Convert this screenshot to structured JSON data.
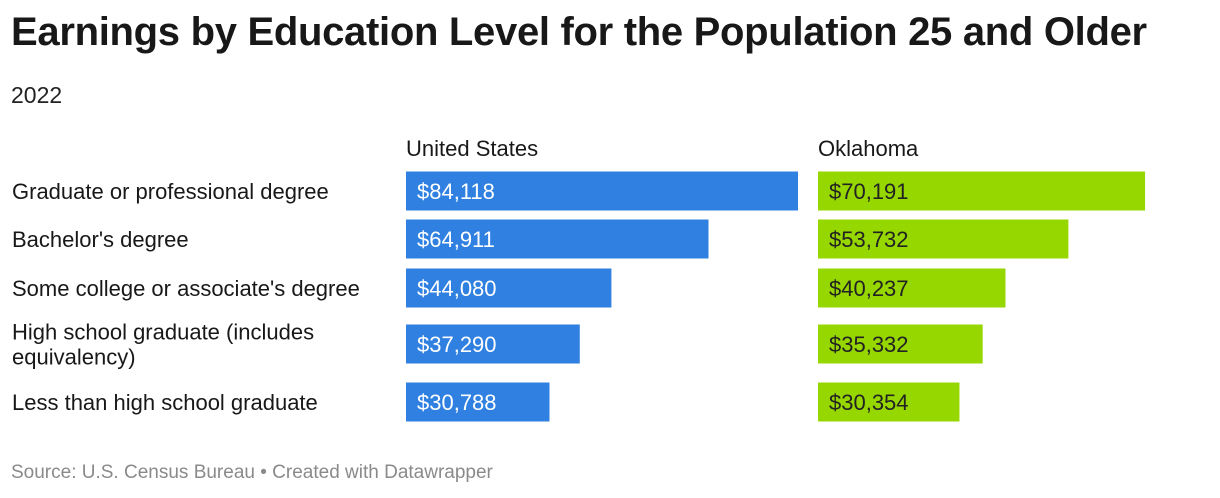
{
  "title": "Earnings by Education Level for the Population 25 and Older",
  "subtitle": "2022",
  "source": "Source: U.S. Census Bureau • Created with Datawrapper",
  "colors": {
    "us": "#2f80e0",
    "ok": "#97d700",
    "us_label": "#ffffff",
    "ok_label": "#222222",
    "text": "#181818"
  },
  "chart_data": {
    "type": "bar",
    "orientation": "horizontal",
    "categories": [
      "Graduate or professional degree",
      "Bachelor's degree",
      "Some college or associate's degree",
      "High school graduate (includes equivalency)",
      "Less than high school graduate"
    ],
    "series": [
      {
        "name": "United States",
        "values": [
          84118,
          64911,
          44080,
          37290,
          30788
        ],
        "labels": [
          "$84,118",
          "$64,911",
          "$44,080",
          "$37,290",
          "$30,788"
        ]
      },
      {
        "name": "Oklahoma",
        "values": [
          70191,
          53732,
          40237,
          35332,
          30354
        ],
        "labels": [
          "$70,191",
          "$53,732",
          "$40,237",
          "$35,332",
          "$30,354"
        ]
      }
    ],
    "xlim": [
      0,
      84118
    ],
    "grid": false,
    "legend": "none"
  }
}
